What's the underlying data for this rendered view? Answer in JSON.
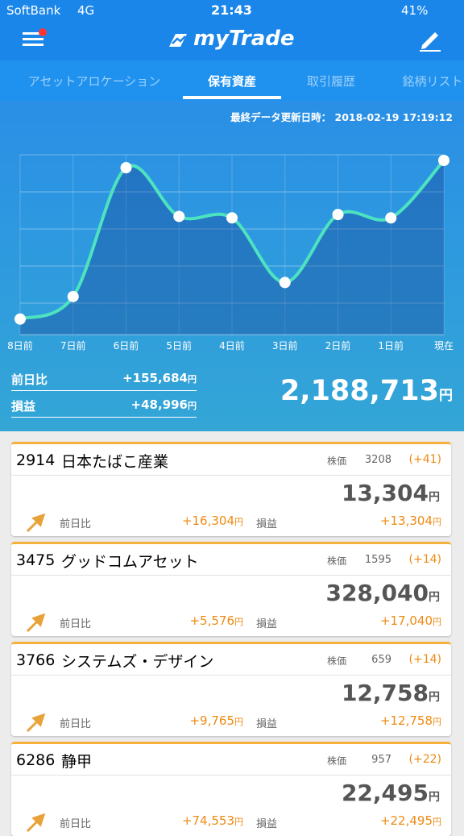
{
  "status_bar": {
    "carrier": "SoftBank",
    "network": "4G",
    "time": "21:43",
    "battery": "41%"
  },
  "header": {
    "title": "myTrade"
  },
  "tabs": [
    "アセットアロケーション",
    "保有資産",
    "取引履歴",
    "銘柄リスト"
  ],
  "updated": "最終データ更新日時： 2018-02-19 17:19:12",
  "labels": {
    "yen": "円",
    "price": "株価",
    "day_change": "前日比",
    "profit": "損益"
  },
  "chart_data": {
    "type": "line",
    "categories": [
      "8日前",
      "7日前",
      "6日前",
      "5日前",
      "4日前",
      "3日前",
      "2日前",
      "1日前",
      "現在"
    ],
    "values": [
      1759000,
      1820000,
      2169000,
      2037000,
      2033000,
      1858000,
      2042000,
      2033029,
      2188713
    ],
    "ylim": [
      1717000,
      2204000
    ],
    "color": "#4de3c0"
  },
  "summary": {
    "day_change": "+155,684",
    "profit": "+48,996",
    "total": "2,188,713"
  },
  "holdings": [
    {
      "code": "2914",
      "name": "日本たばこ産業",
      "price": "3208",
      "price_change": "(+41)",
      "value": "13,304",
      "day_change": "+16,304",
      "profit": "+13,304"
    },
    {
      "code": "3475",
      "name": "グッドコムアセット",
      "price": "1595",
      "price_change": "(+14)",
      "value": "328,040",
      "day_change": "+5,576",
      "profit": "+17,040"
    },
    {
      "code": "3766",
      "name": "システムズ・デザイン",
      "price": "659",
      "price_change": "(+14)",
      "value": "12,758",
      "day_change": "+9,765",
      "profit": "+12,758"
    },
    {
      "code": "6286",
      "name": "静甲",
      "price": "957",
      "price_change": "(+22)",
      "value": "22,495",
      "day_change": "+74,553",
      "profit": "+22,495"
    }
  ]
}
